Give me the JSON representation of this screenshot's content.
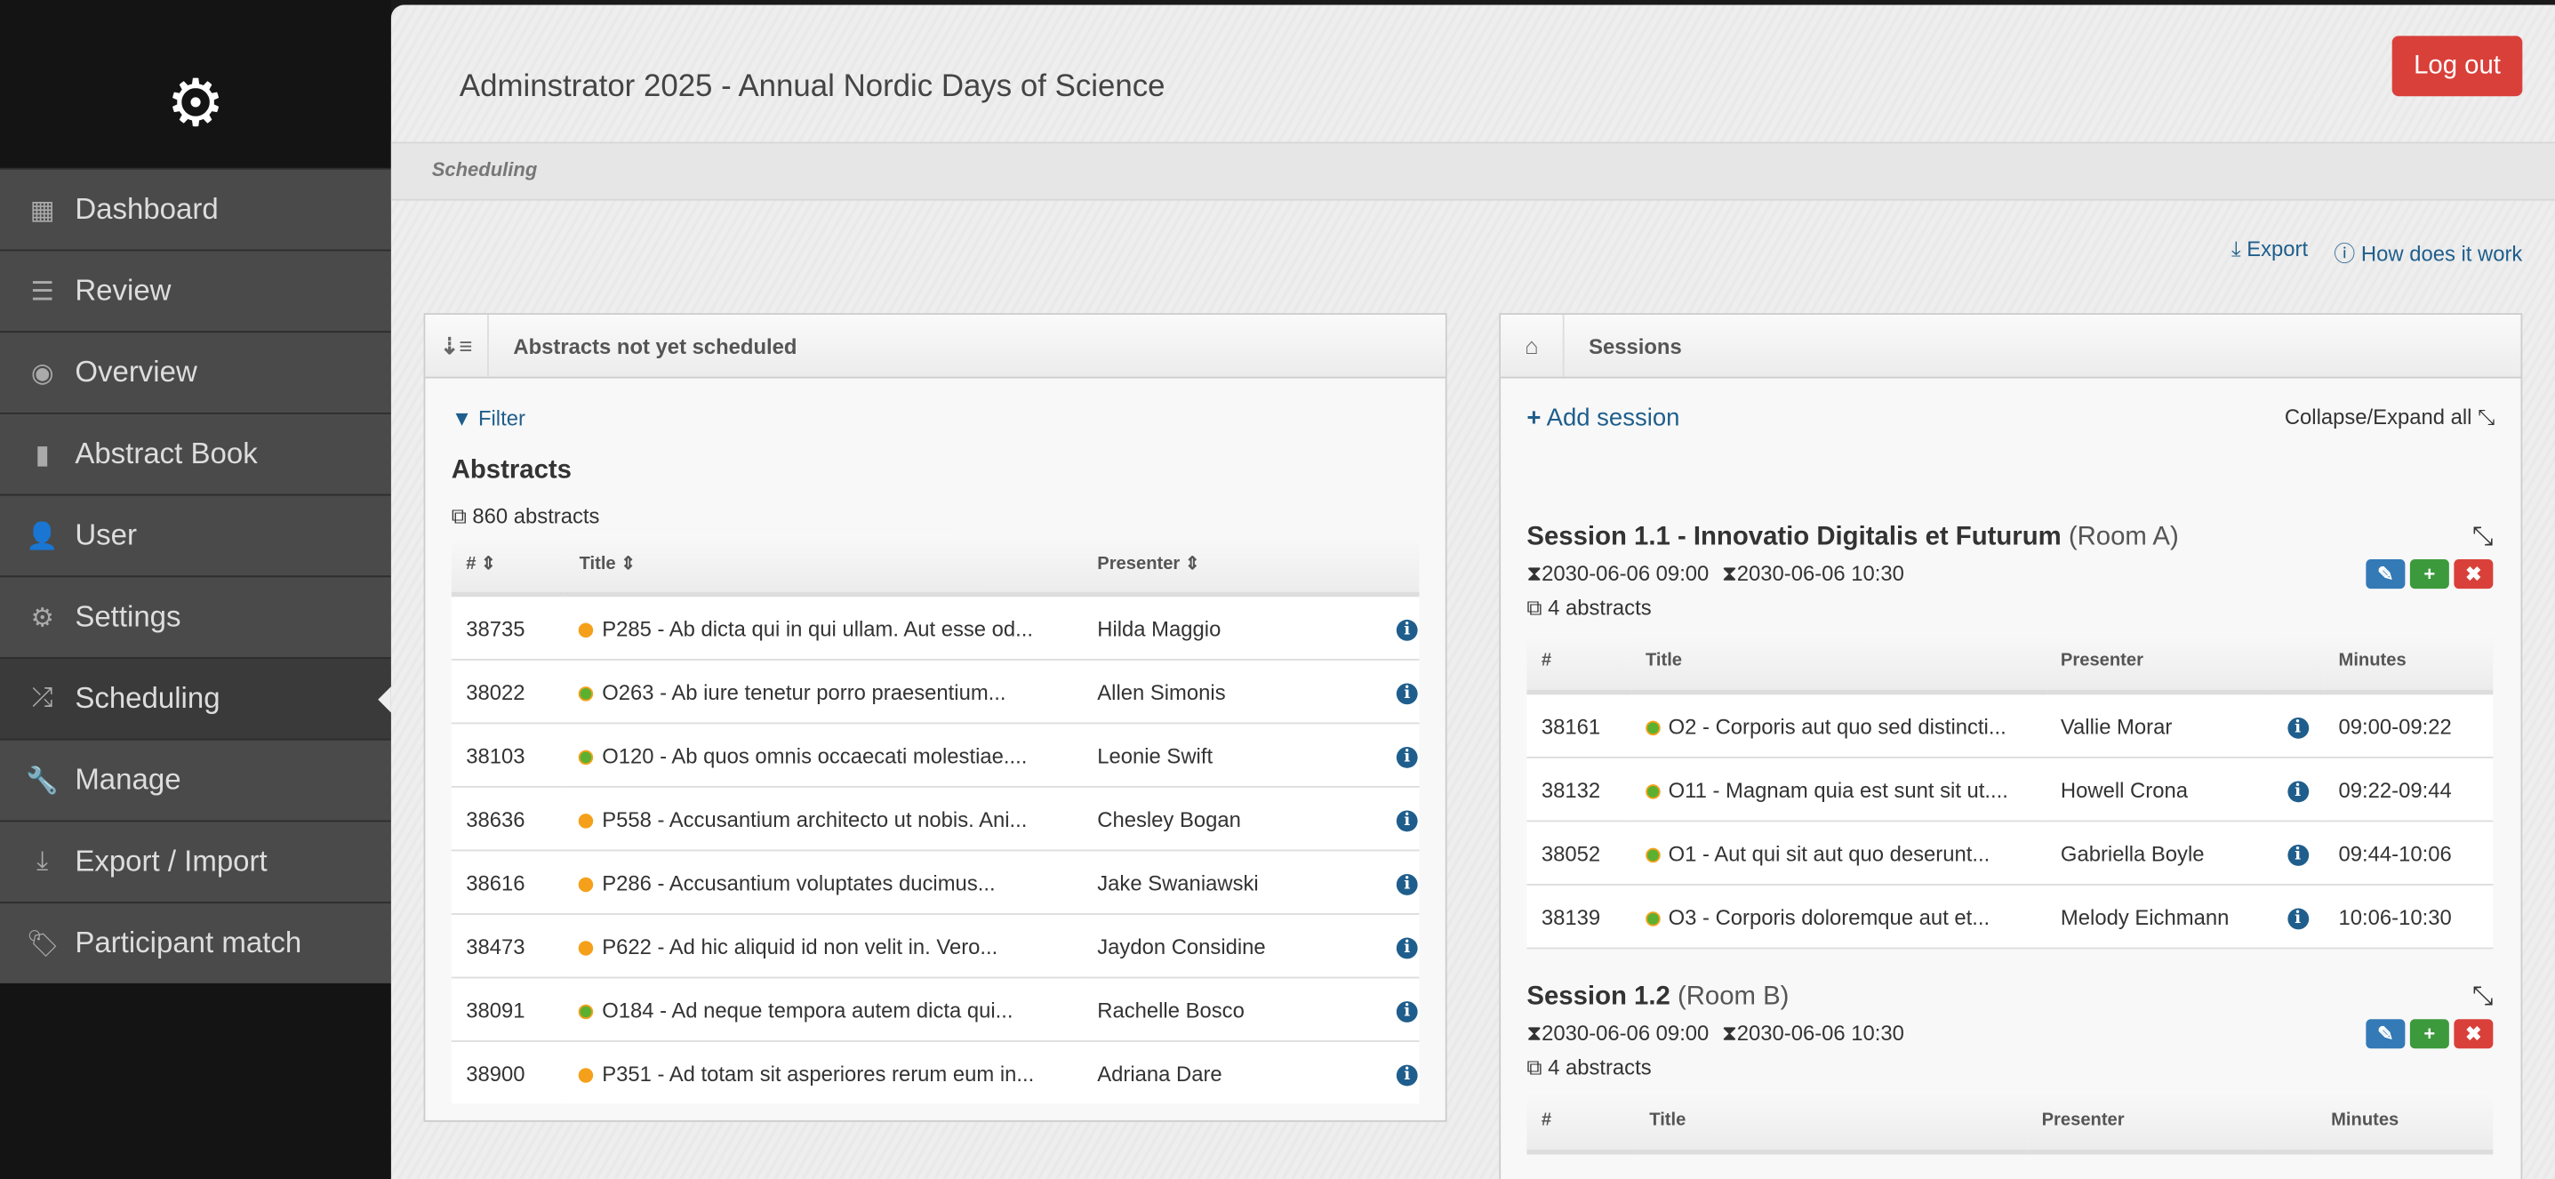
{
  "sidebar": {
    "items": [
      {
        "label": "Dashboard",
        "icon": "grid-icon",
        "glyph": "▦"
      },
      {
        "label": "Review",
        "icon": "list-icon",
        "glyph": "☰"
      },
      {
        "label": "Overview",
        "icon": "eye-icon",
        "glyph": "◉"
      },
      {
        "label": "Abstract Book",
        "icon": "book-icon",
        "glyph": "▮"
      },
      {
        "label": "User",
        "icon": "user-icon",
        "glyph": "👤"
      },
      {
        "label": "Settings",
        "icon": "gear-icon",
        "glyph": "⚙"
      },
      {
        "label": "Scheduling",
        "icon": "shuffle-icon",
        "glyph": "⤮",
        "active": true
      },
      {
        "label": "Manage",
        "icon": "wrench-icon",
        "glyph": "🔧"
      },
      {
        "label": "Export / Import",
        "icon": "download-icon",
        "glyph": "⤓"
      },
      {
        "label": "Participant match",
        "icon": "tags-icon",
        "glyph": "🏷"
      }
    ]
  },
  "header": {
    "title": "Adminstrator 2025 - Annual Nordic Days of Science",
    "logout": "Log out",
    "breadcrumb": "Scheduling",
    "export": "Export",
    "how": "How does it work"
  },
  "left": {
    "panel_title": "Abstracts not yet scheduled",
    "filter": "Filter",
    "heading": "Abstracts",
    "count": "860 abstracts",
    "columns": [
      "#",
      "Title",
      "Presenter"
    ],
    "rows": [
      {
        "id": "38735",
        "type": "P",
        "title": "P285 - Ab dicta qui in qui ullam. Aut esse od...",
        "presenter": "Hilda Maggio"
      },
      {
        "id": "38022",
        "type": "O",
        "title": "O263 - Ab iure tenetur porro praesentium...",
        "presenter": "Allen Simonis"
      },
      {
        "id": "38103",
        "type": "O",
        "title": "O120 - Ab quos omnis occaecati molestiae....",
        "presenter": "Leonie Swift"
      },
      {
        "id": "38636",
        "type": "P",
        "title": "P558 - Accusantium architecto ut nobis. Ani...",
        "presenter": "Chesley Bogan"
      },
      {
        "id": "38616",
        "type": "P",
        "title": "P286 - Accusantium voluptates ducimus...",
        "presenter": "Jake Swaniawski"
      },
      {
        "id": "38473",
        "type": "P",
        "title": "P622 - Ad hic aliquid id non velit in. Vero...",
        "presenter": "Jaydon Considine"
      },
      {
        "id": "38091",
        "type": "O",
        "title": "O184 - Ad neque tempora autem dicta qui...",
        "presenter": "Rachelle Bosco"
      },
      {
        "id": "38900",
        "type": "P",
        "title": "P351 - Ad totam sit asperiores rerum eum in...",
        "presenter": "Adriana Dare"
      }
    ]
  },
  "right": {
    "panel_title": "Sessions",
    "add": "Add session",
    "collapse_all": "Collapse/Expand all",
    "columns": [
      "#",
      "Title",
      "Presenter",
      "Minutes"
    ],
    "sessions": [
      {
        "title": "Session 1.1 - Innovatio Digitalis et Futurum",
        "room": "(Room A)",
        "start": "2030-06-06 09:00",
        "end": "2030-06-06 10:30",
        "count": "4 abstracts",
        "rows": [
          {
            "id": "38161",
            "type": "O",
            "title": "O2 - Corporis aut quo sed distincti...",
            "presenter": "Vallie Morar",
            "minutes": "09:00-09:22"
          },
          {
            "id": "38132",
            "type": "O",
            "title": "O11 - Magnam quia est sunt sit ut....",
            "presenter": "Howell Crona",
            "minutes": "09:22-09:44"
          },
          {
            "id": "38052",
            "type": "O",
            "title": "O1 - Aut qui sit aut quo deserunt...",
            "presenter": "Gabriella Boyle",
            "minutes": "09:44-10:06"
          },
          {
            "id": "38139",
            "type": "O",
            "title": "O3 - Corporis doloremque aut et...",
            "presenter": "Melody Eichmann",
            "minutes": "10:06-10:30"
          }
        ]
      },
      {
        "title": "Session 1.2",
        "room": "(Room B)",
        "start": "2030-06-06 09:00",
        "end": "2030-06-06 10:30",
        "count": "4 abstracts",
        "rows": []
      }
    ]
  },
  "colors": {
    "link": "#1f5e8c",
    "logout": "#d9403a",
    "edit": "#337ab7",
    "add": "#3c9a3c",
    "delete": "#d9403a",
    "poster": "#f5a01a",
    "oral": "#5bb030"
  }
}
